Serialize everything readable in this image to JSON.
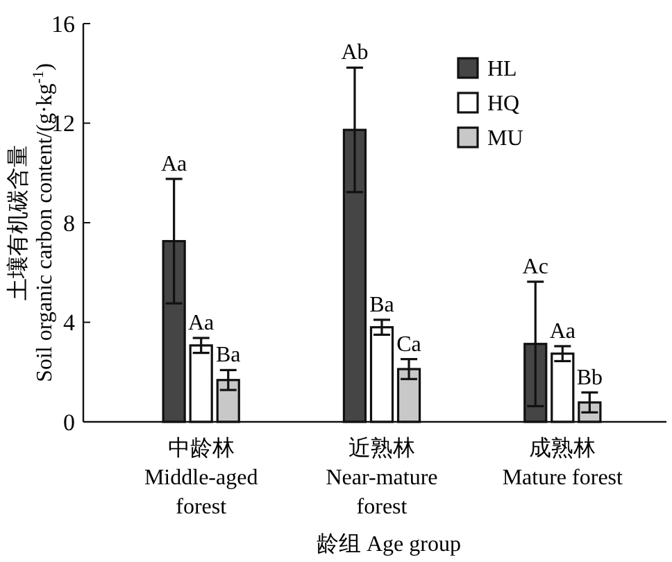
{
  "chart_data": {
    "type": "bar",
    "xlabel": "龄组 Age group",
    "ylabel": "土壤有机碳含量\nSoil organic carbon content/(g·kg$^{-1}$)",
    "categories": [
      "中龄林\nMiddle-aged\nforest",
      "近熟林\nNear-mature\nforest",
      "成熟林\nMature forest"
    ],
    "series": [
      {
        "name": "HL",
        "color": "#454545",
        "values": [
          7.26,
          11.73,
          3.13
        ],
        "errors": [
          2.5,
          2.5,
          2.5
        ]
      },
      {
        "name": "HQ",
        "color": "#ffffff",
        "values": [
          3.07,
          3.8,
          2.74
        ],
        "errors": [
          0.3,
          0.3,
          0.3
        ]
      },
      {
        "name": "MU",
        "color": "#c8c8c8",
        "values": [
          1.68,
          2.12,
          0.78
        ],
        "errors": [
          0.4,
          0.4,
          0.4
        ]
      }
    ],
    "ylim": [
      0,
      16
    ],
    "yticks": [
      0,
      4,
      8,
      12,
      16
    ],
    "legend": "top right",
    "grid": false,
    "annotations": [
      "Aa",
      "Aa",
      "Ba",
      "Ab",
      "Ba",
      "Ca",
      "Ac",
      "Aa",
      "Bb"
    ]
  }
}
